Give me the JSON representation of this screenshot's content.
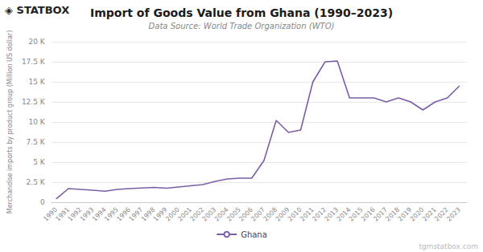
{
  "chart_data": {
    "type": "line",
    "title": "Import of Goods Value from Ghana (1990–2023)",
    "subtitle": "Data Source: World Trade Organization (WTO)",
    "ylabel": "Merchandise imports by product group (Million US dollar)",
    "annotations": [
      "◈ STATBOX",
      "tgmstatbox.com"
    ],
    "x": [
      1990,
      1991,
      1992,
      1993,
      1994,
      1995,
      1996,
      1997,
      1998,
      1999,
      2000,
      2001,
      2002,
      2003,
      2004,
      2005,
      2006,
      2007,
      2008,
      2009,
      2010,
      2011,
      2012,
      2013,
      2014,
      2015,
      2016,
      2017,
      2018,
      2019,
      2020,
      2021,
      2022,
      2023
    ],
    "xlim": [
      1989.6,
      2023.6
    ],
    "xticks": [
      1990,
      1991,
      1992,
      1993,
      1994,
      1995,
      1996,
      1997,
      1998,
      1999,
      2000,
      2001,
      2002,
      2003,
      2004,
      2005,
      2006,
      2007,
      2008,
      2009,
      2010,
      2011,
      2012,
      2013,
      2014,
      2015,
      2016,
      2017,
      2018,
      2019,
      2020,
      2021,
      2022,
      2023
    ],
    "series": [
      {
        "name": "Ghana",
        "color": "#7B5EA7",
        "values": [
          410,
          1700,
          1600,
          1500,
          1380,
          1600,
          1700,
          1780,
          1850,
          1750,
          1900,
          2050,
          2200,
          2600,
          2900,
          3000,
          3000,
          5200,
          10200,
          8700,
          9000,
          15000,
          17500,
          17600,
          13000,
          13000,
          13000,
          12500,
          13000,
          12500,
          11500,
          12500,
          13000,
          14500
        ]
      }
    ],
    "ylim": [
      0,
      20000
    ],
    "yticks": [
      0,
      {
        "value": 2500,
        "label": "2.5 K"
      },
      {
        "value": 5000,
        "label": "5 K"
      },
      {
        "value": 7500,
        "label": "7.5 K"
      },
      {
        "value": 10000,
        "label": "10 K"
      },
      {
        "value": 12500,
        "label": "12.5 K"
      },
      {
        "value": 15000,
        "label": "15 K"
      },
      {
        "value": 17500,
        "label": "17.5 K"
      },
      {
        "value": 20000,
        "label": "20 K"
      }
    ],
    "grid": true,
    "legend": "bottom"
  }
}
